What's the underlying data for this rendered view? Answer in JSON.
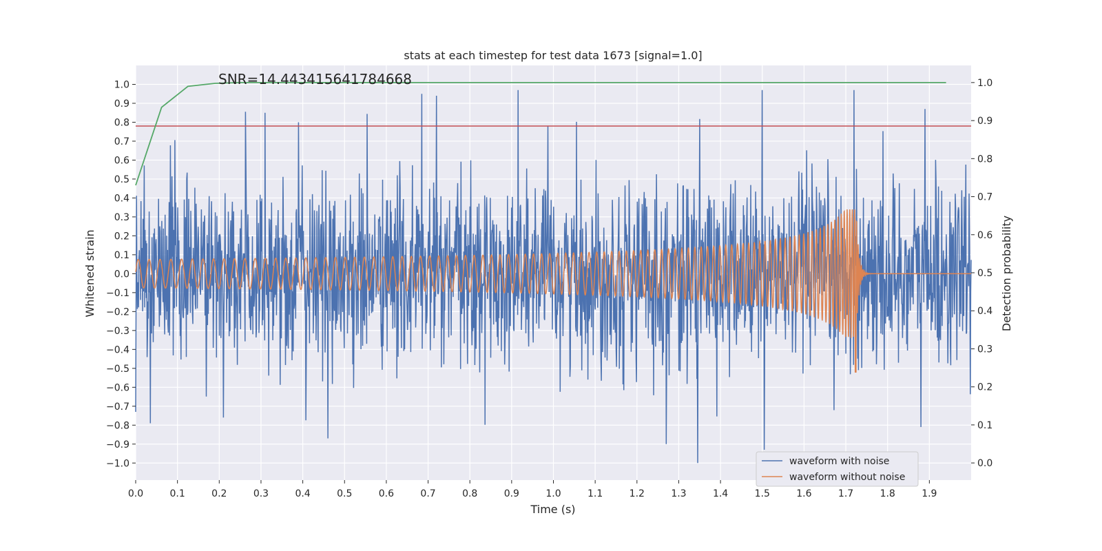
{
  "chart_data": {
    "type": "line",
    "title": "stats at each timestep for test data 1673 [signal=1.0]",
    "annotation": "SNR=14.443415641784668",
    "xlabel": "Time (s)",
    "ylabel_left": "Whitened strain",
    "ylabel_right": "Detection probability",
    "xlim": [
      0.0,
      2.0
    ],
    "ylim_left": [
      -1.09,
      1.1
    ],
    "ylim_right": [
      -0.045,
      1.045
    ],
    "x_ticks": [
      "0.0",
      "0.1",
      "0.2",
      "0.3",
      "0.4",
      "0.5",
      "0.6",
      "0.7",
      "0.8",
      "0.9",
      "1.0",
      "1.1",
      "1.2",
      "1.3",
      "1.4",
      "1.5",
      "1.6",
      "1.7",
      "1.8",
      "1.9"
    ],
    "y_left_ticks": [
      "1.0",
      "0.9",
      "0.8",
      "0.7",
      "0.6",
      "0.5",
      "0.4",
      "0.3",
      "0.2",
      "0.1",
      "0.0",
      "−0.1",
      "−0.2",
      "−0.3",
      "−0.4",
      "−0.5",
      "−0.6",
      "−0.7",
      "−0.8",
      "−0.9",
      "−1.0"
    ],
    "y_right_ticks": [
      "1.0",
      "0.9",
      "0.8",
      "0.7",
      "0.6",
      "0.5",
      "0.4",
      "0.3",
      "0.2",
      "0.1",
      "0.0"
    ],
    "legend": {
      "placement": "lower-right",
      "entries": [
        "waveform with noise",
        "waveform without noise"
      ]
    },
    "colors": {
      "noisy": "#4c72b0",
      "clean": "#dd8452",
      "probability": "#55a868",
      "threshold": "#c44e52",
      "background": "#eaeaf2",
      "grid": "#ffffff"
    },
    "series": [
      {
        "name": "waveform with noise",
        "axis": "left",
        "description": "dense noisy whitened strain, amplitude mostly within about ±0.5 with spikes to ±1.0",
        "n_samples": 2048,
        "amplitude_std": 0.24,
        "spikes": [
          {
            "x": 0.31,
            "y": 0.85
          },
          {
            "x": 0.39,
            "y": 0.8
          },
          {
            "x": 0.685,
            "y": 0.95
          },
          {
            "x": 0.915,
            "y": 0.97
          },
          {
            "x": 1.5,
            "y": 0.97
          },
          {
            "x": 1.72,
            "y": 0.97
          },
          {
            "x": 1.89,
            "y": 0.87
          },
          {
            "x": 0.72,
            "y": 0.94
          },
          {
            "x": 1.345,
            "y": -1.0
          },
          {
            "x": 1.505,
            "y": -0.93
          },
          {
            "x": 0.46,
            "y": -0.87
          },
          {
            "x": 0.035,
            "y": -0.79
          },
          {
            "x": 0.0,
            "y": -0.73
          },
          {
            "x": 1.27,
            "y": -0.9
          },
          {
            "x": 0.21,
            "y": -0.76
          },
          {
            "x": 1.88,
            "y": -0.81
          }
        ]
      },
      {
        "name": "waveform without noise",
        "axis": "left",
        "description": "chirp signal increasing in frequency and amplitude, merging near t=1.725 s then ringdown to zero",
        "start_amplitude": 0.075,
        "peak_amplitude": 0.34,
        "min_peak": -0.52,
        "merger_time": 1.725,
        "end_time": 2.0
      },
      {
        "name": "detection probability",
        "axis": "right",
        "x": [
          0.0,
          0.062,
          0.125,
          0.19,
          0.25,
          0.5,
          1.0,
          1.5,
          1.94
        ],
        "y": [
          0.73,
          0.935,
          0.99,
          0.998,
          1.0,
          1.0,
          1.0,
          1.0,
          1.0
        ]
      },
      {
        "name": "threshold",
        "axis": "left",
        "type": "hline",
        "y": 0.78
      }
    ]
  }
}
